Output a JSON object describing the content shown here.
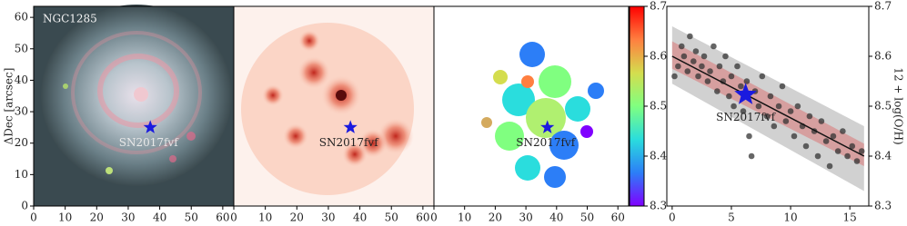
{
  "chart_data": [
    {
      "type": "image",
      "annotation": "NGC1285",
      "ylabel": "ΔDec [arcsec]",
      "xlim": [
        0,
        63.5
      ],
      "ylim": [
        0,
        63.5
      ],
      "xticks": [
        0,
        10,
        20,
        30,
        40,
        50,
        60
      ],
      "yticks": [
        0,
        10,
        20,
        30,
        40,
        50,
        60
      ],
      "marker": {
        "x": 37,
        "y": 25,
        "label": "SN2017fvf",
        "color": "#1a1adf"
      }
    },
    {
      "type": "image",
      "xlim": [
        0,
        63.5
      ],
      "ylim": [
        0,
        63.5
      ],
      "xticks": [
        0,
        10,
        20,
        30,
        40,
        50,
        60
      ],
      "marker": {
        "x": 37,
        "y": 25,
        "label": "SN2017fvf",
        "color": "#1a1adf"
      }
    },
    {
      "type": "image",
      "xlim": [
        0,
        63.5
      ],
      "ylim": [
        0,
        63.5
      ],
      "xticks": [
        0,
        10,
        20,
        30,
        40,
        50,
        60
      ],
      "marker": {
        "x": 37,
        "y": 25,
        "label": "SN2017fvf",
        "color": "#1a1adf"
      },
      "colorbar": {
        "lim": [
          8.3,
          8.7
        ],
        "ticks": [
          8.3,
          8.4,
          8.5,
          8.6,
          8.7
        ],
        "colormap": [
          "#8000ff",
          "#2c7ef7",
          "#2adddd",
          "#80ff80",
          "#d4dd4e",
          "#ff7f40",
          "#ff0000"
        ]
      }
    },
    {
      "type": "scatter",
      "ylabel": "12 + log(O/H)",
      "xlim": [
        -0.45,
        16.6
      ],
      "ylim": [
        8.3,
        8.7
      ],
      "xticks": [
        0,
        5,
        10,
        15
      ],
      "yticks": [
        8.3,
        8.4,
        8.5,
        8.6,
        8.7
      ],
      "color": "#333333",
      "x": [
        0.2,
        0.5,
        0.8,
        1,
        1.3,
        1.5,
        1.8,
        2,
        2.2,
        2.5,
        2.7,
        3,
        3.2,
        3.5,
        3.8,
        4,
        4.3,
        4.5,
        4.8,
        5,
        5.2,
        5.5,
        5.8,
        6,
        6.3,
        6.5,
        6.7,
        7,
        7.3,
        7.6,
        8,
        8.3,
        8.6,
        9,
        9.3,
        9.6,
        10,
        10.3,
        10.6,
        11,
        11.3,
        11.6,
        12,
        12.3,
        12.6,
        13,
        13.3,
        13.6,
        14,
        14.4,
        14.8,
        15.2,
        15.6,
        16
      ],
      "values": [
        8.56,
        8.58,
        8.62,
        8.6,
        8.57,
        8.64,
        8.59,
        8.61,
        8.56,
        8.58,
        8.6,
        8.55,
        8.57,
        8.62,
        8.53,
        8.58,
        8.55,
        8.6,
        8.52,
        8.56,
        8.5,
        8.58,
        8.54,
        8.49,
        8.55,
        8.44,
        8.4,
        8.53,
        8.5,
        8.56,
        8.48,
        8.52,
        8.46,
        8.5,
        8.54,
        8.47,
        8.49,
        8.44,
        8.5,
        8.46,
        8.42,
        8.48,
        8.45,
        8.4,
        8.47,
        8.43,
        8.38,
        8.44,
        8.41,
        8.45,
        8.4,
        8.42,
        8.39,
        8.41
      ],
      "fit_line": {
        "x": [
          0,
          16.2
        ],
        "y": [
          8.6,
          8.4
        ],
        "color": "#111111"
      },
      "fit_band": {
        "x": [
          0,
          16.2
        ],
        "lower": [
          8.575,
          8.38
        ],
        "upper": [
          8.63,
          8.425
        ],
        "color": "#d98a8a"
      },
      "scatter_band": {
        "x": [
          0,
          16.2
        ],
        "lower": [
          8.545,
          8.33
        ],
        "upper": [
          8.66,
          8.46
        ],
        "color": "#bdbdbd"
      },
      "marker": {
        "x": 6.2,
        "y": 8.523,
        "label": "SN2017fvf",
        "color": "#1a1adf"
      }
    }
  ]
}
